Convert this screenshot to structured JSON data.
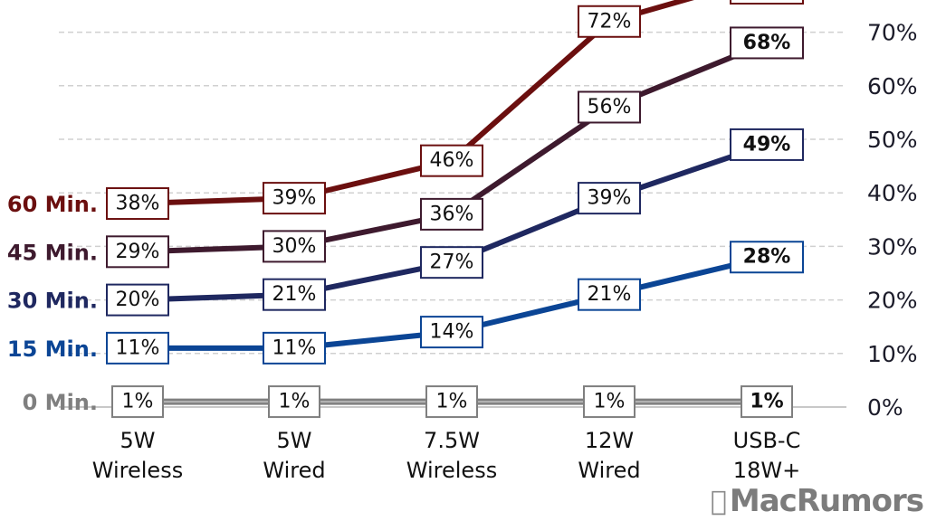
{
  "chart_data": {
    "type": "line",
    "title": "",
    "xlabel": "",
    "ylabel": "",
    "categories": [
      [
        "5W",
        "Wireless"
      ],
      [
        "5W",
        "Wired"
      ],
      [
        "7.5W",
        "Wireless"
      ],
      [
        "12W",
        "Wired"
      ],
      [
        "USB-C",
        "18W+"
      ]
    ],
    "ylim": [
      0,
      70
    ],
    "yticks": [
      "0%",
      "10%",
      "20%",
      "30%",
      "40%",
      "50%",
      "60%",
      "70%"
    ],
    "ytick_values": [
      0,
      10,
      20,
      30,
      40,
      50,
      60,
      70
    ],
    "grid": true,
    "yaxis_position": "right",
    "series": [
      {
        "name": "60 Min.",
        "color": "#6b0f0f",
        "values": [
          38,
          39,
          46,
          72,
          null
        ],
        "labels": [
          "38%",
          "39%",
          "46%",
          "72%",
          ""
        ]
      },
      {
        "name": "45 Min.",
        "color": "#3e1a2e",
        "values": [
          29,
          30,
          36,
          56,
          68
        ],
        "labels": [
          "29%",
          "30%",
          "36%",
          "56%",
          "68%"
        ]
      },
      {
        "name": "30 Min.",
        "color": "#1f2860",
        "values": [
          20,
          21,
          27,
          39,
          49
        ],
        "labels": [
          "20%",
          "21%",
          "27%",
          "39%",
          "49%"
        ]
      },
      {
        "name": "15 Min.",
        "color": "#0b4595",
        "values": [
          11,
          11,
          14,
          21,
          28
        ],
        "labels": [
          "11%",
          "11%",
          "14%",
          "21%",
          "28%"
        ]
      },
      {
        "name": "0 Min.",
        "color": "#7f7f7f",
        "values": [
          1,
          1,
          1,
          1,
          1
        ],
        "labels": [
          "1%",
          "1%",
          "1%",
          "1%",
          "1%"
        ]
      }
    ],
    "bold_last_label": true,
    "annotations": []
  },
  "watermark": {
    "text": "MacRumors",
    "icon": "apple-logo-icon"
  }
}
